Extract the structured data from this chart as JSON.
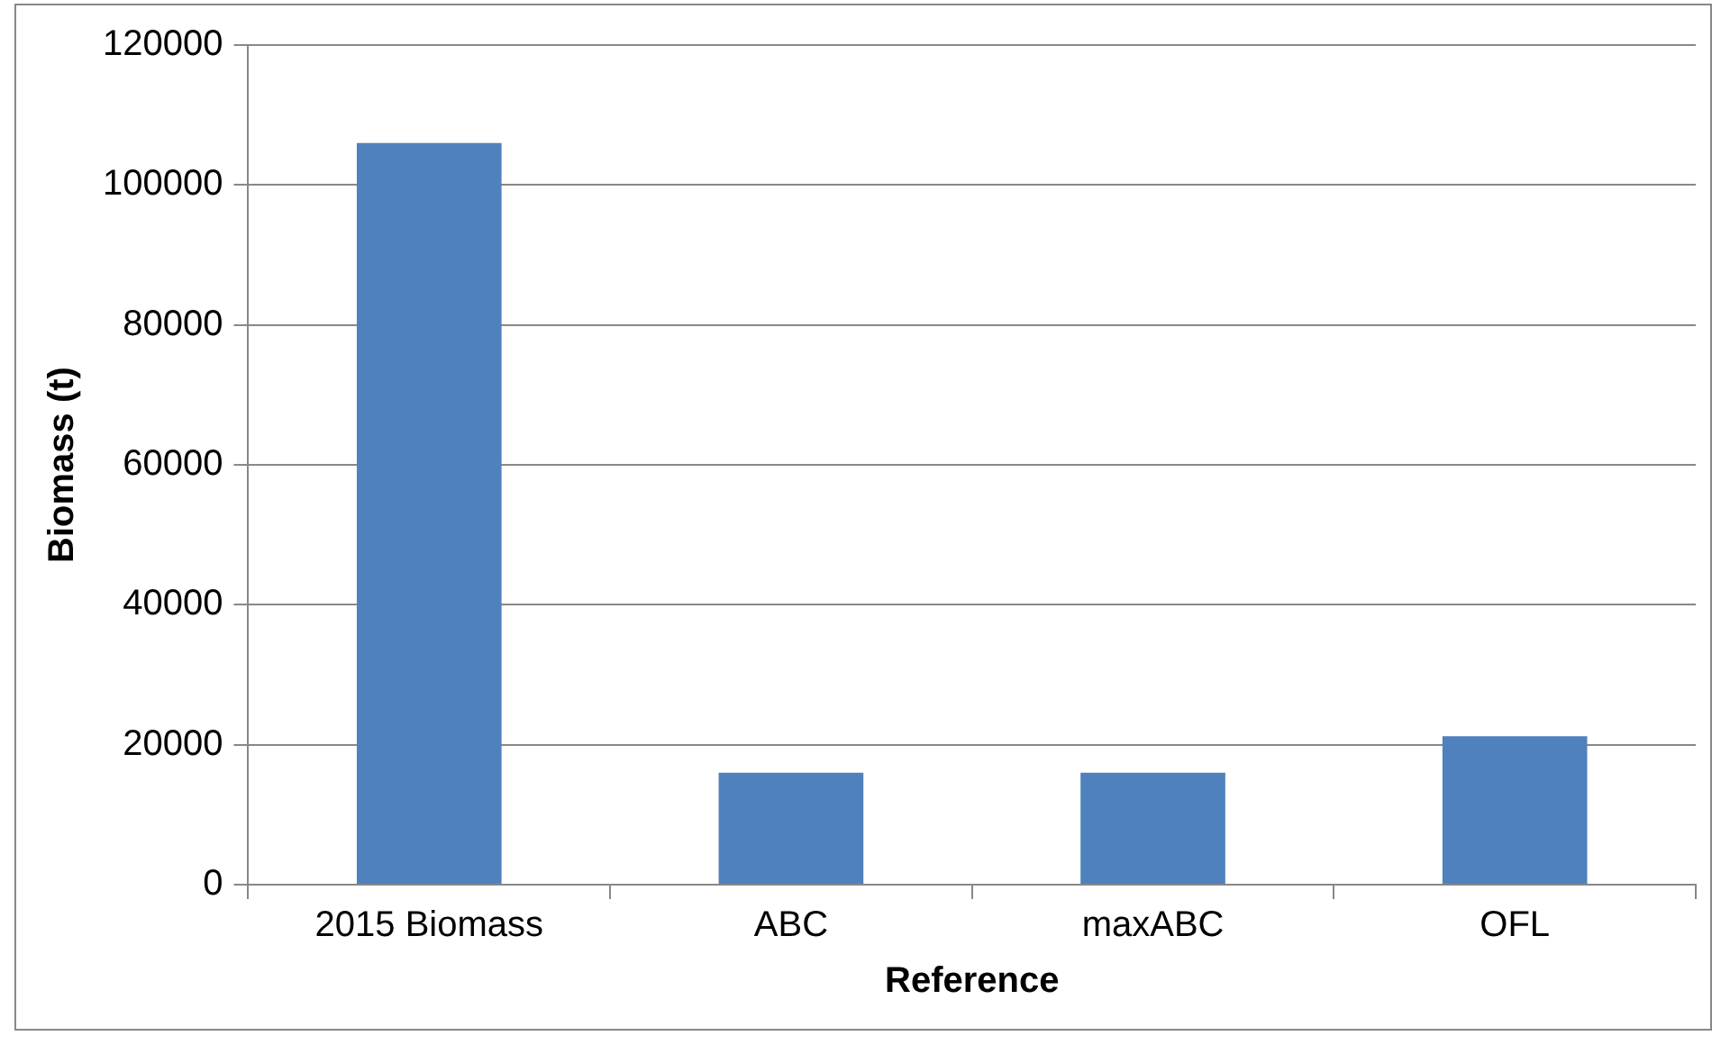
{
  "chart_data": {
    "type": "bar",
    "xlabel": "Reference",
    "ylabel": "Biomass (t)",
    "categories": [
      "2015 Biomass",
      "ABC",
      "maxABC",
      "OFL"
    ],
    "values": [
      106000,
      16000,
      16000,
      21200
    ],
    "color": "#4f81bd",
    "ylim": [
      0,
      120000
    ],
    "yticks": [
      0,
      20000,
      40000,
      60000,
      80000,
      100000,
      120000
    ],
    "grid": "y"
  }
}
